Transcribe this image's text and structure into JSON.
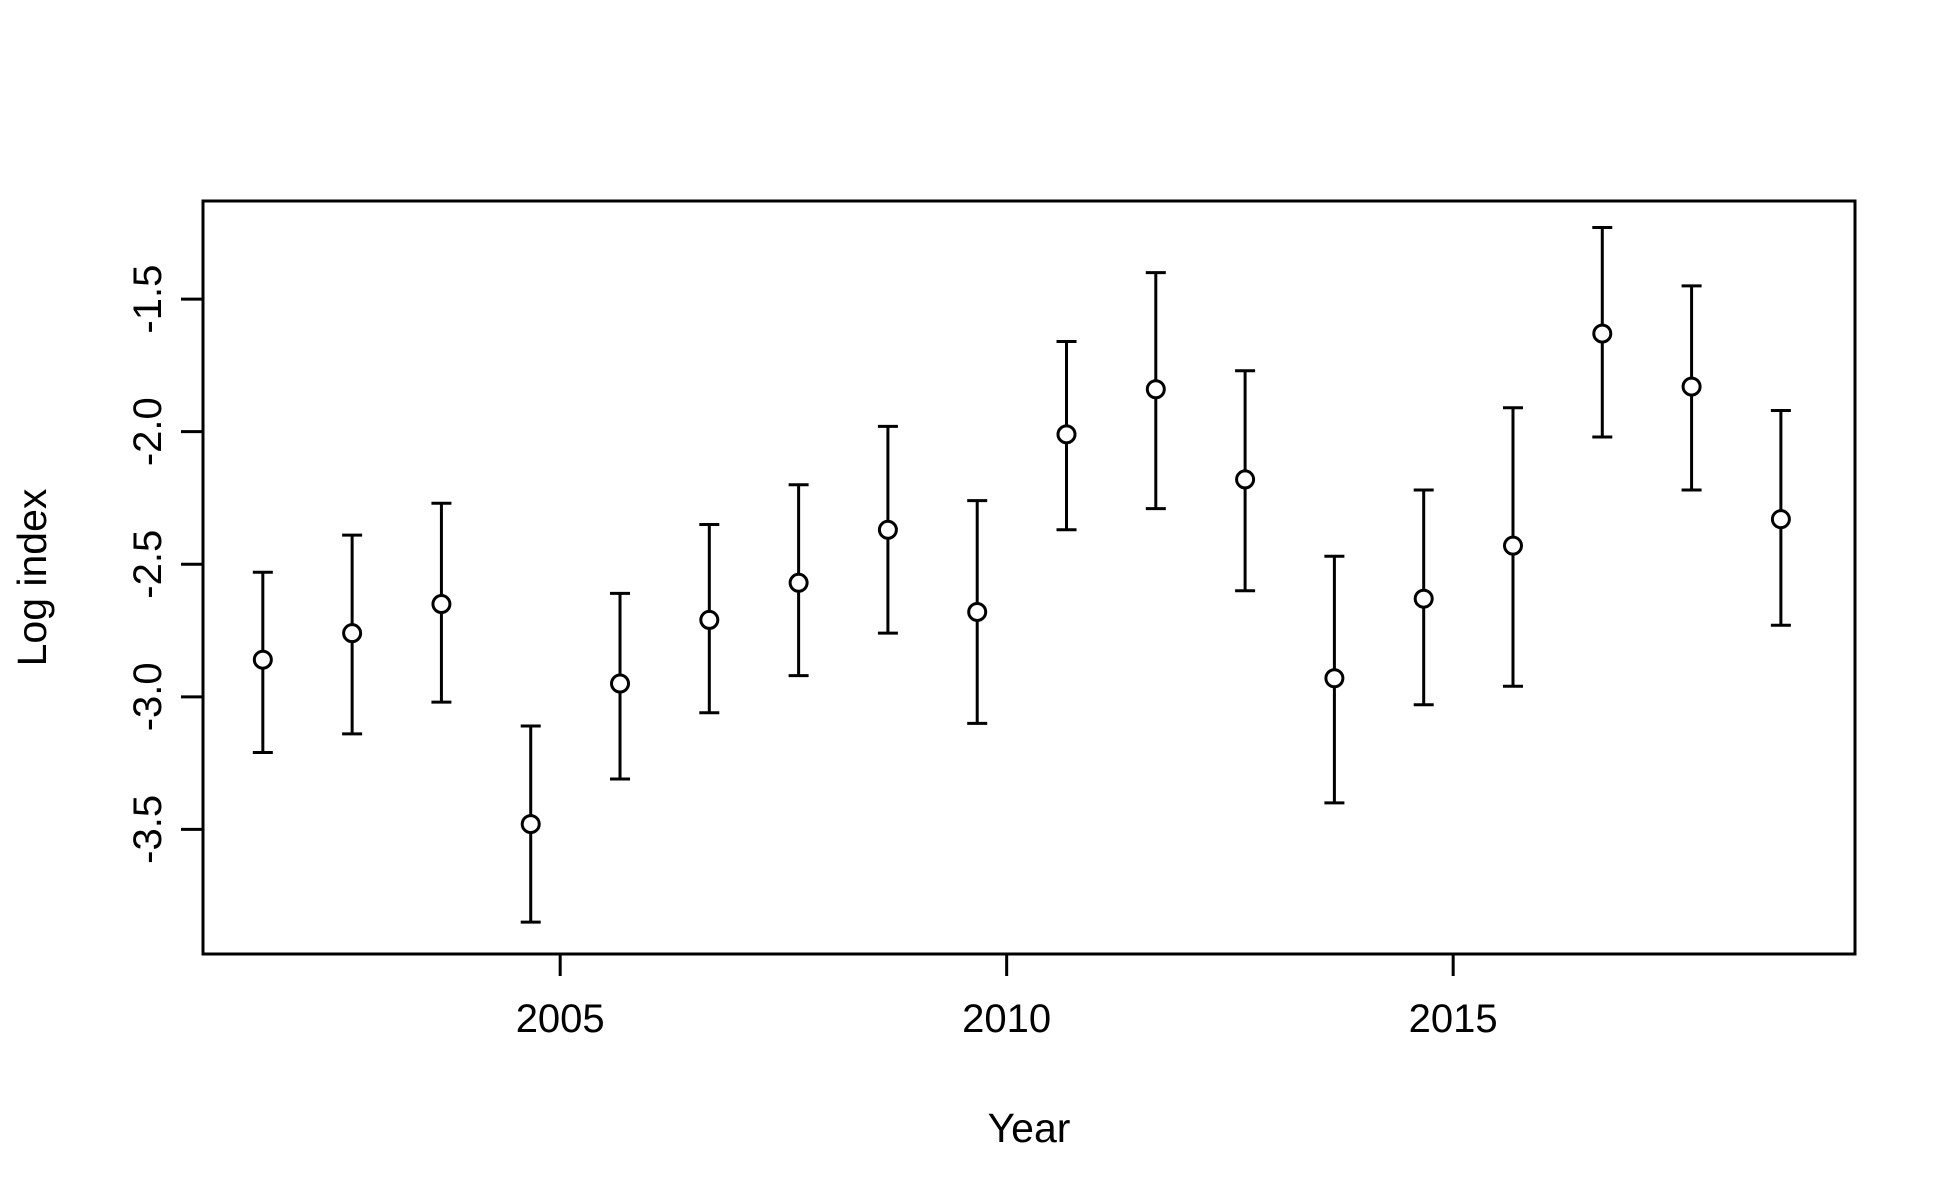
{
  "chart_data": {
    "type": "scatter",
    "title": "",
    "xlabel": "Year",
    "ylabel": "Log index",
    "xlim": [
      2001,
      2019.5
    ],
    "ylim": [
      -3.97,
      -1.13
    ],
    "x_ticks": [
      2005,
      2010,
      2015
    ],
    "y_ticks": [
      -3.5,
      -3.0,
      -2.5,
      -2.0,
      -1.5
    ],
    "y_tick_labels": [
      "-3.5",
      "-3.0",
      "-2.5",
      "-2.0",
      "-1.5"
    ],
    "grid": false,
    "legend": "none",
    "series": [
      {
        "x": [
          2001.67,
          2002.67,
          2003.67,
          2004.67,
          2005.67,
          2006.67,
          2007.67,
          2008.67,
          2009.67,
          2010.67,
          2011.67,
          2012.67,
          2013.67,
          2014.67,
          2015.67,
          2016.67,
          2017.67,
          2018.67
        ],
        "y": [
          -2.86,
          -2.76,
          -2.65,
          -3.48,
          -2.95,
          -2.71,
          -2.57,
          -2.37,
          -2.68,
          -2.01,
          -1.84,
          -2.18,
          -2.93,
          -2.63,
          -2.43,
          -1.63,
          -1.83,
          -2.33
        ],
        "lower": [
          -3.21,
          -3.14,
          -3.02,
          -3.85,
          -3.31,
          -3.06,
          -2.92,
          -2.76,
          -3.1,
          -2.37,
          -2.29,
          -2.6,
          -3.4,
          -3.03,
          -2.96,
          -2.02,
          -2.22,
          -2.73
        ],
        "upper": [
          -2.53,
          -2.39,
          -2.27,
          -3.11,
          -2.61,
          -2.35,
          -2.2,
          -1.98,
          -2.26,
          -1.66,
          -1.4,
          -1.77,
          -2.47,
          -2.22,
          -1.91,
          -1.23,
          -1.45,
          -1.92
        ]
      }
    ]
  }
}
